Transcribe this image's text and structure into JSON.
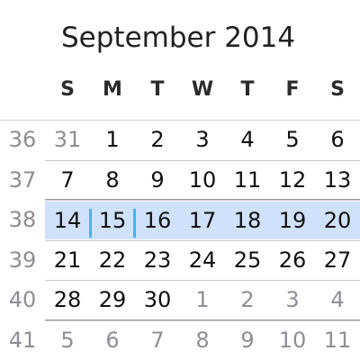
{
  "calendar": {
    "title": "September 2014",
    "weekdays": [
      "S",
      "M",
      "T",
      "W",
      "T",
      "F",
      "S"
    ],
    "weeks": [
      {
        "number": "36",
        "days": [
          "31",
          "1",
          "2",
          "3",
          "4",
          "5",
          "6"
        ]
      },
      {
        "number": "37",
        "days": [
          "7",
          "8",
          "9",
          "10",
          "11",
          "12",
          "13"
        ]
      },
      {
        "number": "38",
        "days": [
          "14",
          "15",
          "16",
          "17",
          "18",
          "19",
          "20"
        ]
      },
      {
        "number": "39",
        "days": [
          "21",
          "22",
          "23",
          "24",
          "25",
          "26",
          "27"
        ]
      },
      {
        "number": "40",
        "days": [
          "28",
          "29",
          "30",
          "1",
          "2",
          "3",
          "4"
        ]
      },
      {
        "number": "41",
        "days": [
          "5",
          "6",
          "7",
          "8",
          "9",
          "10",
          "11"
        ]
      }
    ],
    "selected_week": "38",
    "selected_day": "15",
    "colors": {
      "selected_week_background": "#cfe1fb",
      "focus_marker": "#41b6ee",
      "other_month_text": "#8e8e96"
    }
  }
}
